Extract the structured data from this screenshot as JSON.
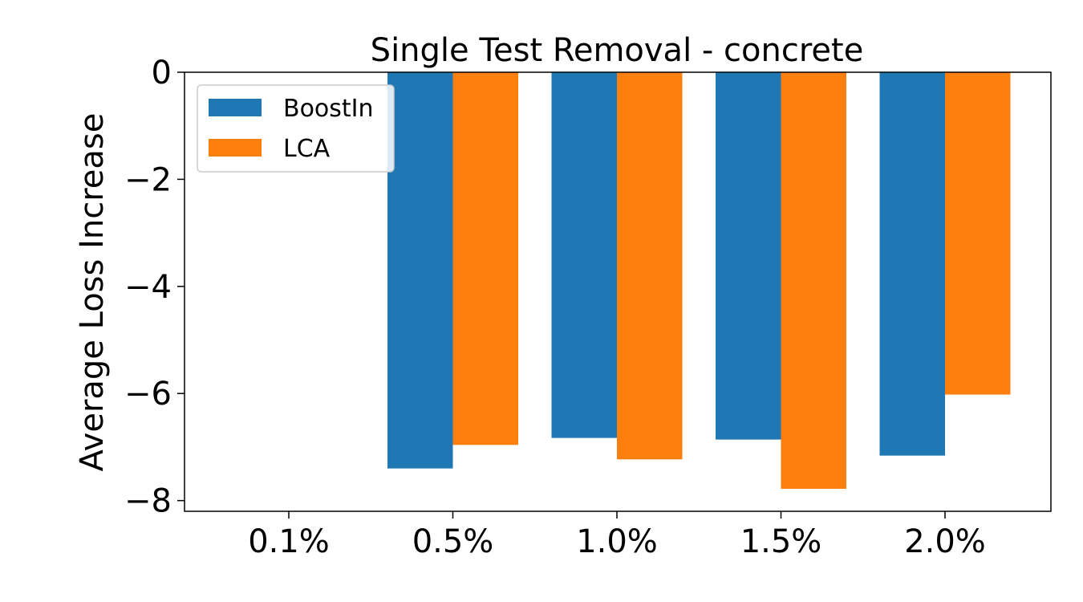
{
  "chart_data": {
    "type": "bar",
    "title": "Single Test Removal - concrete",
    "xlabel": "",
    "ylabel": "Average Loss Increase",
    "categories": [
      "0.1%",
      "0.5%",
      "1.0%",
      "1.5%",
      "2.0%"
    ],
    "series": [
      {
        "name": "BoostIn",
        "color": "#1f77b4",
        "values": [
          0,
          -7.4,
          -6.83,
          -6.86,
          -7.16
        ]
      },
      {
        "name": "LCA",
        "color": "#ff7f0e",
        "values": [
          0,
          -6.96,
          -7.23,
          -7.78,
          -6.02
        ]
      }
    ],
    "ylim": [
      -8.2,
      0
    ],
    "yticks": [
      0,
      -2,
      -4,
      -6,
      -8
    ],
    "ytick_labels": [
      "0",
      "−2",
      "−4",
      "−6",
      "−8"
    ],
    "grid": false,
    "legend": "top-left"
  }
}
